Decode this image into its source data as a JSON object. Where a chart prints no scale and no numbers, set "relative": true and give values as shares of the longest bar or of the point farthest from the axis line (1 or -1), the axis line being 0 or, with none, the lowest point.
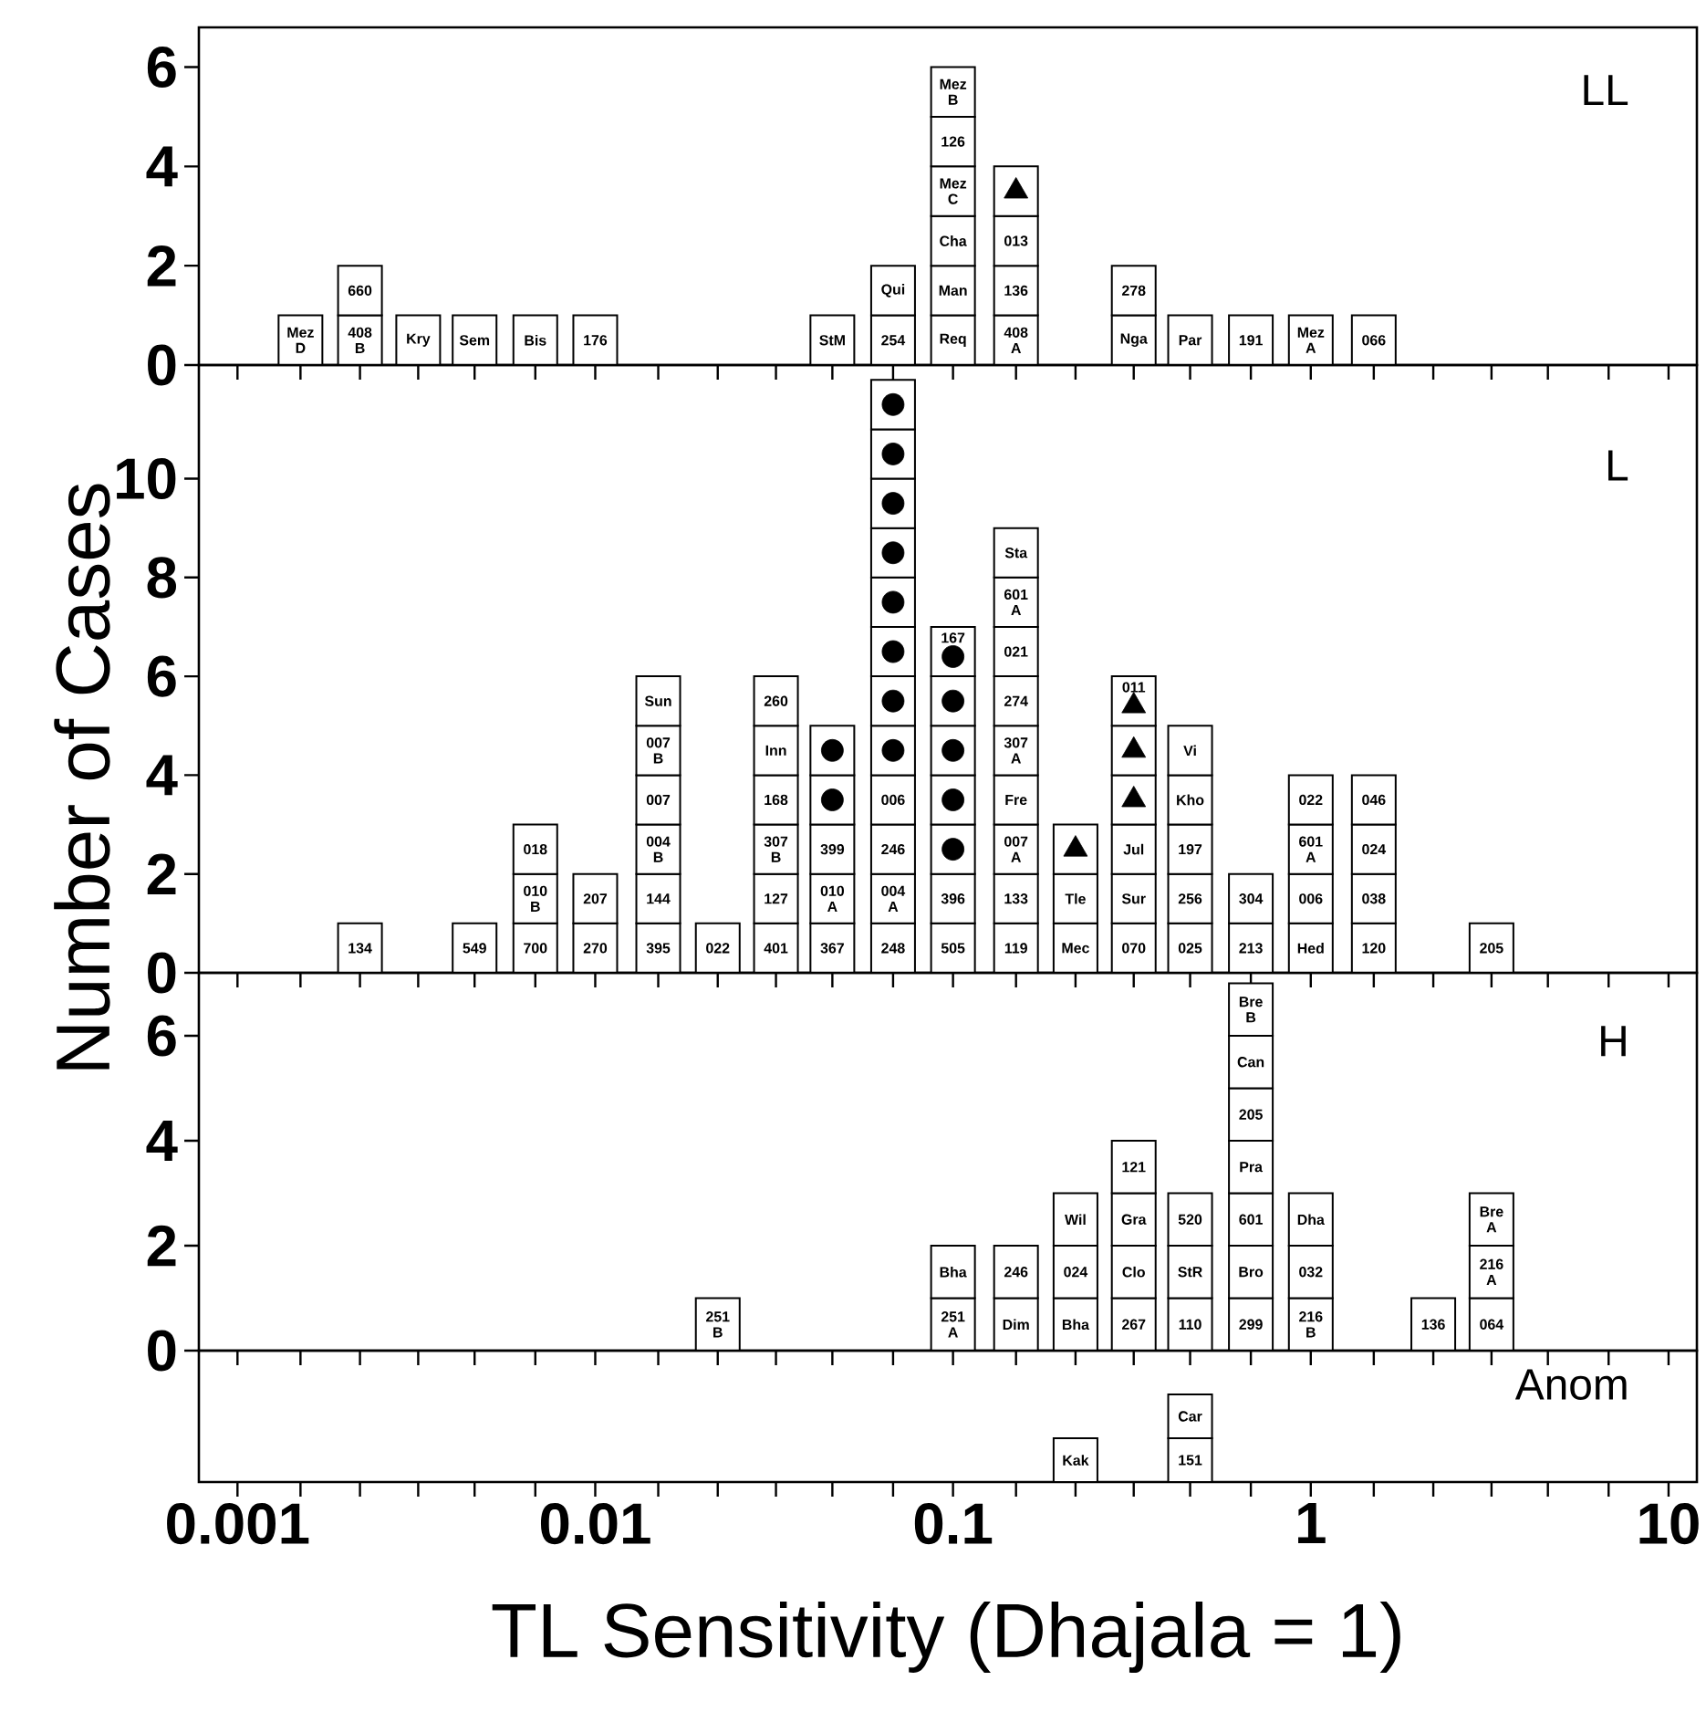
{
  "chart_data": [
    {
      "type": "bar",
      "stacked": true,
      "log": "x",
      "title": "LL",
      "tick_labels": "y",
      "xlim": [
        0.00078,
        12
      ],
      "ylim": [
        0,
        6.8
      ],
      "yticks": [
        0,
        2,
        4,
        6
      ],
      "xticks": [
        0.001,
        {
          "value": 0.0015,
          "label": null
        },
        {
          "value": 0.0022,
          "label": null
        },
        {
          "value": 0.0032,
          "label": null
        },
        {
          "value": 0.0046,
          "label": null
        },
        {
          "value": 0.0068,
          "label": null
        },
        0.01,
        {
          "value": 0.015,
          "label": null
        },
        {
          "value": 0.022,
          "label": null
        },
        {
          "value": 0.032,
          "label": null
        },
        {
          "value": 0.046,
          "label": null
        },
        {
          "value": 0.068,
          "label": null
        },
        0.1,
        {
          "value": 0.15,
          "label": null
        },
        {
          "value": 0.22,
          "label": null
        },
        {
          "value": 0.32,
          "label": null
        },
        {
          "value": 0.46,
          "label": null
        },
        {
          "value": 0.68,
          "label": null
        },
        1,
        {
          "value": 1.5,
          "label": null
        },
        {
          "value": 2.2,
          "label": null
        },
        {
          "value": 3.2,
          "label": null
        },
        {
          "value": 4.6,
          "label": null
        },
        {
          "value": 6.8,
          "label": null
        },
        10
      ],
      "x": [
        0.0015,
        0.0022,
        0.0032,
        0.0046,
        0.0068,
        0.01,
        0.046,
        0.068,
        0.1,
        0.15,
        0.32,
        0.46,
        0.68,
        1,
        1.5
      ],
      "series": [
        {
          "color": "#ffffff",
          "values": [
            1,
            1,
            1,
            1,
            1,
            1,
            1,
            1,
            1,
            1,
            1,
            1,
            1,
            1,
            1
          ]
        },
        {
          "color": "#ffffff",
          "values": [
            null,
            1,
            null,
            null,
            null,
            null,
            null,
            1,
            1,
            1,
            1,
            null,
            null,
            null,
            null
          ]
        },
        {
          "color": "#ffffff",
          "values": [
            null,
            null,
            null,
            null,
            null,
            null,
            null,
            null,
            1,
            1,
            null,
            null,
            null,
            null,
            null
          ]
        },
        {
          "color": "#ffffff",
          "values": [
            null,
            null,
            null,
            null,
            null,
            null,
            null,
            null,
            1,
            1,
            null,
            null,
            null,
            null,
            null
          ]
        },
        {
          "color": "#ffffff",
          "values": [
            null,
            null,
            null,
            null,
            null,
            null,
            null,
            null,
            1,
            null,
            null,
            null,
            null,
            null,
            null
          ]
        },
        {
          "color": "#ffffff",
          "values": [
            null,
            null,
            null,
            null,
            null,
            null,
            null,
            null,
            1,
            null,
            null,
            null,
            null,
            null,
            null
          ]
        },
        {
          "type": "scatter",
          "marker": "triangle",
          "color": "#000000",
          "x": [
            0.15
          ],
          "values": [
            3.5
          ]
        }
      ],
      "annotations": [
        {
          "text": "Mez D",
          "x": 0.0015,
          "y": 1
        },
        {
          "text": "408 B",
          "x": 0.0022,
          "y": 1
        },
        {
          "text": "660",
          "x": 0.0022,
          "y": 2
        },
        {
          "text": "Kry",
          "x": 0.0032,
          "y": 1
        },
        {
          "text": "Sem",
          "x": 0.0046,
          "y": 1
        },
        {
          "text": "Bis",
          "x": 0.0068,
          "y": 1
        },
        {
          "text": "176",
          "x": 0.01,
          "y": 1
        },
        {
          "text": "StM",
          "x": 0.046,
          "y": 1
        },
        {
          "text": "254",
          "x": 0.068,
          "y": 1
        },
        {
          "text": "Qui",
          "x": 0.068,
          "y": 2
        },
        {
          "text": "Req",
          "x": 0.1,
          "y": 1
        },
        {
          "text": "Man",
          "x": 0.1,
          "y": 2
        },
        {
          "text": "Cha",
          "x": 0.1,
          "y": 3
        },
        {
          "text": "Mez C",
          "x": 0.1,
          "y": 4
        },
        {
          "text": "126",
          "x": 0.1,
          "y": 5
        },
        {
          "text": "Mez B",
          "x": 0.1,
          "y": 6
        },
        {
          "text": "408 A",
          "x": 0.15,
          "y": 1
        },
        {
          "text": "136",
          "x": 0.15,
          "y": 2
        },
        {
          "text": "013",
          "x": 0.15,
          "y": 3
        },
        {
          "text": "Nga",
          "x": 0.32,
          "y": 1
        },
        {
          "text": "278",
          "x": 0.32,
          "y": 2
        },
        {
          "text": "Par",
          "x": 0.46,
          "y": 1
        },
        {
          "text": "191",
          "x": 0.68,
          "y": 1
        },
        {
          "text": "Mez A",
          "x": 1,
          "y": 1
        },
        {
          "text": "066",
          "x": 1.5,
          "y": 1
        }
      ]
    },
    {
      "type": "bar",
      "stacked": true,
      "log": "x",
      "title": "L",
      "ylabel": "Number of Cases",
      "tick_labels": "y",
      "xlim": [
        0.00078,
        12
      ],
      "ylim": [
        0,
        12.3
      ],
      "yticks": [
        0,
        2,
        4,
        6,
        8,
        10
      ],
      "xticks": [
        0.001,
        {
          "value": 0.0015,
          "label": null
        },
        {
          "value": 0.0022,
          "label": null
        },
        {
          "value": 0.0032,
          "label": null
        },
        {
          "value": 0.0046,
          "label": null
        },
        {
          "value": 0.0068,
          "label": null
        },
        0.01,
        {
          "value": 0.015,
          "label": null
        },
        {
          "value": 0.022,
          "label": null
        },
        {
          "value": 0.032,
          "label": null
        },
        {
          "value": 0.046,
          "label": null
        },
        {
          "value": 0.068,
          "label": null
        },
        0.1,
        {
          "value": 0.15,
          "label": null
        },
        {
          "value": 0.22,
          "label": null
        },
        {
          "value": 0.32,
          "label": null
        },
        {
          "value": 0.46,
          "label": null
        },
        {
          "value": 0.68,
          "label": null
        },
        1,
        {
          "value": 1.5,
          "label": null
        },
        {
          "value": 2.2,
          "label": null
        },
        {
          "value": 3.2,
          "label": null
        },
        {
          "value": 4.6,
          "label": null
        },
        {
          "value": 6.8,
          "label": null
        },
        10
      ],
      "x": [
        0.0022,
        0.0046,
        0.0068,
        0.01,
        0.015,
        0.022,
        0.032,
        0.046,
        0.068,
        0.1,
        0.15,
        0.22,
        0.32,
        0.46,
        0.68,
        1,
        1.5,
        3.2
      ],
      "series": [
        {
          "color": "#ffffff",
          "values": [
            1,
            1,
            1,
            1,
            1,
            1,
            1,
            1,
            1,
            1,
            1,
            1,
            1,
            1,
            1,
            1,
            1,
            1
          ]
        },
        {
          "color": "#ffffff",
          "values": [
            null,
            null,
            1,
            1,
            1,
            null,
            1,
            1,
            1,
            1,
            1,
            1,
            1,
            1,
            1,
            1,
            1,
            null
          ]
        },
        {
          "color": "#ffffff",
          "values": [
            null,
            null,
            1,
            null,
            1,
            null,
            1,
            1,
            1,
            1,
            1,
            1,
            1,
            1,
            null,
            1,
            1,
            null
          ]
        },
        {
          "color": "#ffffff",
          "values": [
            null,
            null,
            null,
            null,
            1,
            null,
            1,
            1,
            1,
            1,
            1,
            null,
            1,
            1,
            null,
            1,
            1,
            null
          ]
        },
        {
          "color": "#ffffff",
          "values": [
            null,
            null,
            null,
            null,
            1,
            null,
            1,
            1,
            1,
            1,
            1,
            null,
            1,
            1,
            null,
            null,
            null,
            null
          ]
        },
        {
          "color": "#ffffff",
          "values": [
            null,
            null,
            null,
            null,
            1,
            null,
            1,
            null,
            1,
            1,
            1,
            null,
            1,
            null,
            null,
            null,
            null,
            null
          ]
        },
        {
          "color": "#ffffff",
          "values": [
            null,
            null,
            null,
            null,
            null,
            null,
            null,
            null,
            1,
            1,
            1,
            null,
            null,
            null,
            null,
            null,
            null,
            null
          ]
        },
        {
          "color": "#ffffff",
          "values": [
            null,
            null,
            null,
            null,
            null,
            null,
            null,
            null,
            1,
            null,
            1,
            null,
            null,
            null,
            null,
            null,
            null,
            null
          ]
        },
        {
          "color": "#ffffff",
          "values": [
            null,
            null,
            null,
            null,
            null,
            null,
            null,
            null,
            1,
            null,
            1,
            null,
            null,
            null,
            null,
            null,
            null,
            null
          ]
        },
        {
          "color": "#ffffff",
          "values": [
            null,
            null,
            null,
            null,
            null,
            null,
            null,
            null,
            1,
            null,
            null,
            null,
            null,
            null,
            null,
            null,
            null,
            null
          ]
        },
        {
          "color": "#ffffff",
          "values": [
            null,
            null,
            null,
            null,
            null,
            null,
            null,
            null,
            1,
            null,
            null,
            null,
            null,
            null,
            null,
            null,
            null,
            null
          ]
        },
        {
          "color": "#ffffff",
          "values": [
            null,
            null,
            null,
            null,
            null,
            null,
            null,
            null,
            1,
            null,
            null,
            null,
            null,
            null,
            null,
            null,
            null,
            null
          ]
        },
        {
          "type": "scatter",
          "marker": "circle",
          "color": "#000000",
          "x": [
            0.046,
            0.046,
            0.068,
            0.068,
            0.068,
            0.068,
            0.068,
            0.068,
            0.068,
            0.068,
            0.1,
            0.1,
            0.1,
            0.1,
            0.1
          ],
          "values": [
            3.5,
            4.5,
            4.5,
            5.5,
            6.5,
            7.5,
            8.5,
            9.5,
            10.5,
            11.5,
            2.5,
            3.5,
            4.5,
            5.5,
            6.4
          ]
        },
        {
          "type": "scatter",
          "marker": "triangle",
          "color": "#000000",
          "x": [
            0.22,
            0.32,
            0.32,
            0.32
          ],
          "values": [
            2.5,
            3.5,
            4.5,
            5.4
          ]
        }
      ],
      "annotations": [
        {
          "text": "134",
          "x": 0.0022,
          "y": 1
        },
        {
          "text": "549",
          "x": 0.0046,
          "y": 1
        },
        {
          "text": "700",
          "x": 0.0068,
          "y": 1
        },
        {
          "text": "010 B",
          "x": 0.0068,
          "y": 2
        },
        {
          "text": "018",
          "x": 0.0068,
          "y": 3
        },
        {
          "text": "270",
          "x": 0.01,
          "y": 1
        },
        {
          "text": "207",
          "x": 0.01,
          "y": 2
        },
        {
          "text": "395",
          "x": 0.015,
          "y": 1
        },
        {
          "text": "144",
          "x": 0.015,
          "y": 2
        },
        {
          "text": "004 B",
          "x": 0.015,
          "y": 3
        },
        {
          "text": "007",
          "x": 0.015,
          "y": 4
        },
        {
          "text": "007 B",
          "x": 0.015,
          "y": 5
        },
        {
          "text": "Sun",
          "x": 0.015,
          "y": 6
        },
        {
          "text": "022",
          "x": 0.022,
          "y": 1
        },
        {
          "text": "401",
          "x": 0.032,
          "y": 1
        },
        {
          "text": "127",
          "x": 0.032,
          "y": 2
        },
        {
          "text": "307 B",
          "x": 0.032,
          "y": 3
        },
        {
          "text": "168",
          "x": 0.032,
          "y": 4
        },
        {
          "text": "Inn",
          "x": 0.032,
          "y": 5
        },
        {
          "text": "260",
          "x": 0.032,
          "y": 6
        },
        {
          "text": "367",
          "x": 0.046,
          "y": 1
        },
        {
          "text": "010 A",
          "x": 0.046,
          "y": 2
        },
        {
          "text": "399",
          "x": 0.046,
          "y": 3
        },
        {
          "text": "248",
          "x": 0.068,
          "y": 1
        },
        {
          "text": "004 A",
          "x": 0.068,
          "y": 2
        },
        {
          "text": "246",
          "x": 0.068,
          "y": 3
        },
        {
          "text": "006",
          "x": 0.068,
          "y": 4
        },
        {
          "text": "505",
          "x": 0.1,
          "y": 1
        },
        {
          "text": "396",
          "x": 0.1,
          "y": 2
        },
        {
          "text": "167",
          "x": 0.1,
          "y": 7
        },
        {
          "text": "119",
          "x": 0.15,
          "y": 1
        },
        {
          "text": "133",
          "x": 0.15,
          "y": 2
        },
        {
          "text": "007 A",
          "x": 0.15,
          "y": 3
        },
        {
          "text": "Fre",
          "x": 0.15,
          "y": 4
        },
        {
          "text": "307 A",
          "x": 0.15,
          "y": 5
        },
        {
          "text": "274",
          "x": 0.15,
          "y": 6
        },
        {
          "text": "021",
          "x": 0.15,
          "y": 7
        },
        {
          "text": "601 A",
          "x": 0.15,
          "y": 8
        },
        {
          "text": "Sta",
          "x": 0.15,
          "y": 9
        },
        {
          "text": "Mec",
          "x": 0.22,
          "y": 1
        },
        {
          "text": "Tle",
          "x": 0.22,
          "y": 2
        },
        {
          "text": "070",
          "x": 0.32,
          "y": 1
        },
        {
          "text": "Sur",
          "x": 0.32,
          "y": 2
        },
        {
          "text": "Jul",
          "x": 0.32,
          "y": 3
        },
        {
          "text": "011",
          "x": 0.32,
          "y": 6
        },
        {
          "text": "025",
          "x": 0.46,
          "y": 1
        },
        {
          "text": "256",
          "x": 0.46,
          "y": 2
        },
        {
          "text": "197",
          "x": 0.46,
          "y": 3
        },
        {
          "text": "Kho",
          "x": 0.46,
          "y": 4
        },
        {
          "text": "Vi",
          "x": 0.46,
          "y": 5
        },
        {
          "text": "213",
          "x": 0.68,
          "y": 1
        },
        {
          "text": "304",
          "x": 0.68,
          "y": 2
        },
        {
          "text": "Hed",
          "x": 1,
          "y": 1
        },
        {
          "text": "006",
          "x": 1,
          "y": 2
        },
        {
          "text": "601 A",
          "x": 1,
          "y": 3
        },
        {
          "text": "022",
          "x": 1,
          "y": 4
        },
        {
          "text": "120",
          "x": 1.5,
          "y": 1
        },
        {
          "text": "038",
          "x": 1.5,
          "y": 2
        },
        {
          "text": "024",
          "x": 1.5,
          "y": 3
        },
        {
          "text": "046",
          "x": 1.5,
          "y": 4
        },
        {
          "text": "205",
          "x": 3.2,
          "y": 1
        }
      ]
    },
    {
      "type": "bar",
      "stacked": true,
      "log": "x",
      "title": "H",
      "tick_labels": "y",
      "xlim": [
        0.00078,
        12
      ],
      "ylim": [
        0,
        7.2
      ],
      "yticks": [
        0,
        2,
        4,
        6
      ],
      "xticks": [
        0.001,
        {
          "value": 0.0015,
          "label": null
        },
        {
          "value": 0.0022,
          "label": null
        },
        {
          "value": 0.0032,
          "label": null
        },
        {
          "value": 0.0046,
          "label": null
        },
        {
          "value": 0.0068,
          "label": null
        },
        0.01,
        {
          "value": 0.015,
          "label": null
        },
        {
          "value": 0.022,
          "label": null
        },
        {
          "value": 0.032,
          "label": null
        },
        {
          "value": 0.046,
          "label": null
        },
        {
          "value": 0.068,
          "label": null
        },
        0.1,
        {
          "value": 0.15,
          "label": null
        },
        {
          "value": 0.22,
          "label": null
        },
        {
          "value": 0.32,
          "label": null
        },
        {
          "value": 0.46,
          "label": null
        },
        {
          "value": 0.68,
          "label": null
        },
        1,
        {
          "value": 1.5,
          "label": null
        },
        {
          "value": 2.2,
          "label": null
        },
        {
          "value": 3.2,
          "label": null
        },
        {
          "value": 4.6,
          "label": null
        },
        {
          "value": 6.8,
          "label": null
        },
        10
      ],
      "x": [
        0.022,
        0.1,
        0.15,
        0.22,
        0.32,
        0.46,
        0.68,
        1,
        2.2,
        3.2
      ],
      "series": [
        {
          "color": "#ffffff",
          "values": [
            1,
            1,
            1,
            1,
            1,
            1,
            1,
            1,
            1,
            1
          ]
        },
        {
          "color": "#ffffff",
          "values": [
            null,
            1,
            1,
            1,
            1,
            1,
            1,
            1,
            null,
            1
          ]
        },
        {
          "color": "#ffffff",
          "values": [
            null,
            null,
            null,
            1,
            1,
            1,
            1,
            1,
            null,
            1
          ]
        },
        {
          "color": "#ffffff",
          "values": [
            null,
            null,
            null,
            null,
            1,
            null,
            1,
            null,
            null,
            null
          ]
        },
        {
          "color": "#ffffff",
          "values": [
            null,
            null,
            null,
            null,
            null,
            null,
            1,
            null,
            null,
            null
          ]
        },
        {
          "color": "#ffffff",
          "values": [
            null,
            null,
            null,
            null,
            null,
            null,
            1,
            null,
            null,
            null
          ]
        },
        {
          "color": "#ffffff",
          "values": [
            null,
            null,
            null,
            null,
            null,
            null,
            1,
            null,
            null,
            null
          ]
        }
      ],
      "annotations": [
        {
          "text": "251 B",
          "x": 0.022,
          "y": 1
        },
        {
          "text": "251 A",
          "x": 0.1,
          "y": 1
        },
        {
          "text": "Bha",
          "x": 0.1,
          "y": 2
        },
        {
          "text": "Dim",
          "x": 0.15,
          "y": 1
        },
        {
          "text": "246",
          "x": 0.15,
          "y": 2
        },
        {
          "text": "Bha",
          "x": 0.22,
          "y": 1
        },
        {
          "text": "024",
          "x": 0.22,
          "y": 2
        },
        {
          "text": "Wil",
          "x": 0.22,
          "y": 3
        },
        {
          "text": "267",
          "x": 0.32,
          "y": 1
        },
        {
          "text": "Clo",
          "x": 0.32,
          "y": 2
        },
        {
          "text": "Gra",
          "x": 0.32,
          "y": 3
        },
        {
          "text": "121",
          "x": 0.32,
          "y": 4
        },
        {
          "text": "110",
          "x": 0.46,
          "y": 1
        },
        {
          "text": "StR",
          "x": 0.46,
          "y": 2
        },
        {
          "text": "520",
          "x": 0.46,
          "y": 3
        },
        {
          "text": "299",
          "x": 0.68,
          "y": 1
        },
        {
          "text": "Bro",
          "x": 0.68,
          "y": 2
        },
        {
          "text": "601",
          "x": 0.68,
          "y": 3
        },
        {
          "text": "Pra",
          "x": 0.68,
          "y": 4
        },
        {
          "text": "205",
          "x": 0.68,
          "y": 5
        },
        {
          "text": "Can",
          "x": 0.68,
          "y": 6
        },
        {
          "text": "Bre B",
          "x": 0.68,
          "y": 7
        },
        {
          "text": "216 B",
          "x": 1,
          "y": 1
        },
        {
          "text": "032",
          "x": 1,
          "y": 2
        },
        {
          "text": "Dha",
          "x": 1,
          "y": 3
        },
        {
          "text": "136",
          "x": 2.2,
          "y": 1
        },
        {
          "text": "064",
          "x": 3.2,
          "y": 1
        },
        {
          "text": "216 A",
          "x": 3.2,
          "y": 2
        },
        {
          "text": "Bre A",
          "x": 3.2,
          "y": 3
        }
      ]
    },
    {
      "type": "bar",
      "stacked": true,
      "relative": true,
      "log": "x",
      "title": "Anom",
      "xlabel": "TL Sensitivity (Dhajala = 1)",
      "tick_labels": "x",
      "xlim": [
        0.00078,
        12
      ],
      "xticks": [
        0.001,
        {
          "value": 0.0015,
          "label": null
        },
        {
          "value": 0.0022,
          "label": null
        },
        {
          "value": 0.0032,
          "label": null
        },
        {
          "value": 0.0046,
          "label": null
        },
        {
          "value": 0.0068,
          "label": null
        },
        0.01,
        {
          "value": 0.015,
          "label": null
        },
        {
          "value": 0.022,
          "label": null
        },
        {
          "value": 0.032,
          "label": null
        },
        {
          "value": 0.046,
          "label": null
        },
        {
          "value": 0.068,
          "label": null
        },
        0.1,
        {
          "value": 0.15,
          "label": null
        },
        {
          "value": 0.22,
          "label": null
        },
        {
          "value": 0.32,
          "label": null
        },
        {
          "value": 0.46,
          "label": null
        },
        {
          "value": 0.68,
          "label": null
        },
        1,
        {
          "value": 1.5,
          "label": null
        },
        {
          "value": 2.2,
          "label": null
        },
        {
          "value": 3.2,
          "label": null
        },
        {
          "value": 4.6,
          "label": null
        },
        {
          "value": 6.8,
          "label": null
        },
        10
      ],
      "x": [
        0.22,
        0.46
      ],
      "series": [
        {
          "color": "#ffffff",
          "values": [
            0.5,
            0.5
          ]
        },
        {
          "color": "#ffffff",
          "values": [
            null,
            0.5
          ]
        }
      ],
      "annotations": [
        {
          "text": "Kak",
          "x": 0.22,
          "y": 0.5
        },
        {
          "text": "151",
          "x": 0.46,
          "y": 0.5
        },
        {
          "text": "Car",
          "x": 0.46,
          "y": 1
        }
      ]
    }
  ]
}
